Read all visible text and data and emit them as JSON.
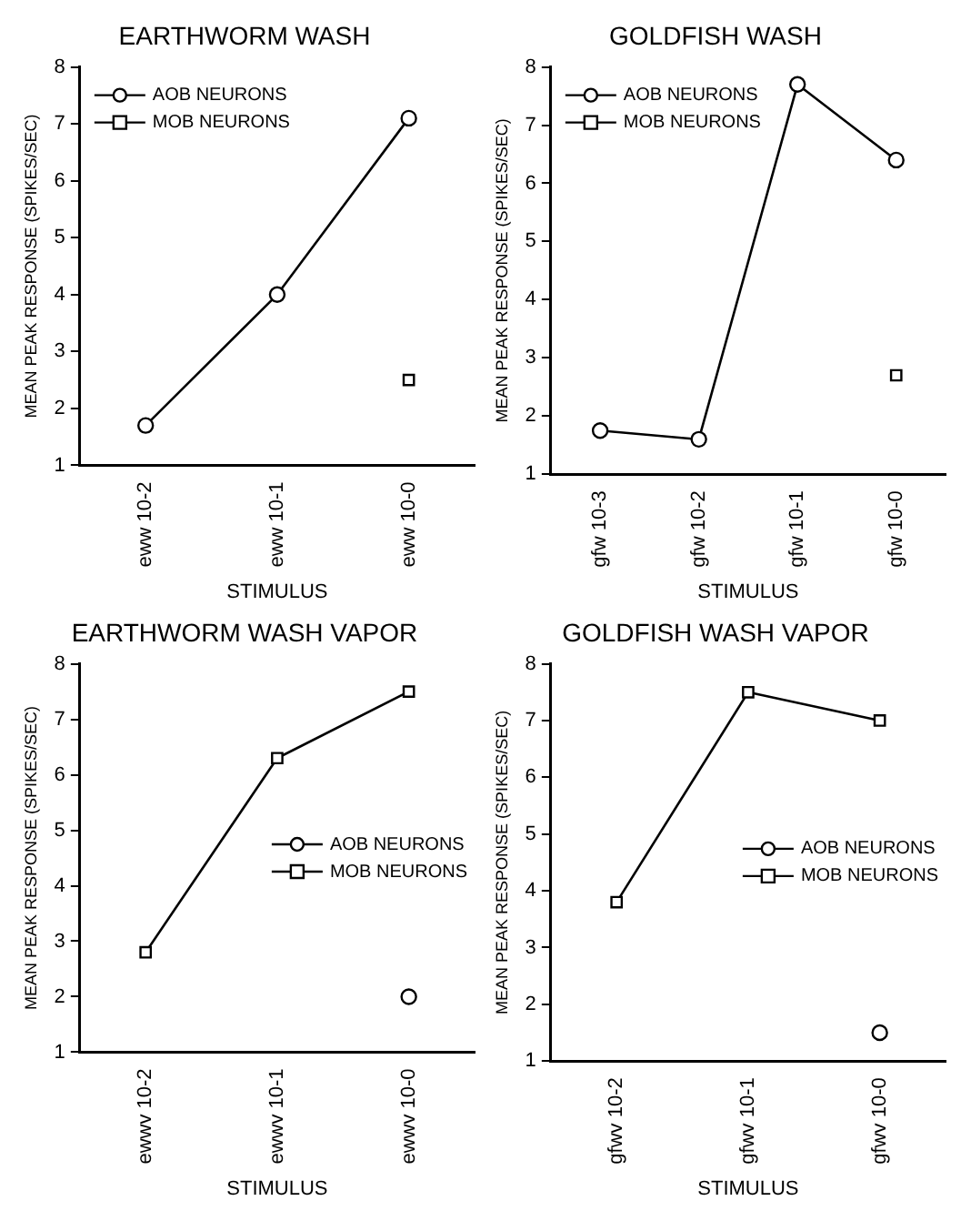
{
  "chart_data": [
    {
      "type": "line",
      "title": "EARTHWORM WASH",
      "xlabel": "STIMULUS",
      "ylabel": "MEAN PEAK RESPONSE (SPIKES/SEC)",
      "categories": [
        "eww 10-2",
        "eww 10-1",
        "eww 10-0"
      ],
      "ylim": [
        1,
        8
      ],
      "yticks": [
        1,
        2,
        3,
        4,
        5,
        6,
        7,
        8
      ],
      "grid": false,
      "legend": "top left",
      "line_style": "solid",
      "series": [
        {
          "name": "AOB NEURONS",
          "color": "#000000",
          "marker": "circle",
          "values": [
            1.7,
            4.0,
            7.1
          ]
        },
        {
          "name": "MOB NEURONS",
          "color": "#000000",
          "marker": "square",
          "values": [
            null,
            null,
            2.5
          ]
        }
      ]
    },
    {
      "type": "line",
      "title": "GOLDFISH WASH",
      "xlabel": "STIMULUS",
      "ylabel": "MEAN PEAK RESPONSE (SPIKES/SEC)",
      "categories": [
        "gfw 10-3",
        "gfw 10-2",
        "gfw 10-1",
        "gfw 10-0"
      ],
      "ylim": [
        1,
        8
      ],
      "yticks": [
        1,
        2,
        3,
        4,
        5,
        6,
        7,
        8
      ],
      "grid": false,
      "legend": "top left",
      "line_style": "solid",
      "series": [
        {
          "name": "AOB NEURONS",
          "color": "#000000",
          "marker": "circle",
          "values": [
            1.75,
            1.6,
            7.7,
            6.4
          ]
        },
        {
          "name": "MOB NEURONS",
          "color": "#000000",
          "marker": "square",
          "values": [
            null,
            null,
            null,
            2.7
          ]
        }
      ]
    },
    {
      "type": "line",
      "title": "EARTHWORM WASH VAPOR",
      "xlabel": "STIMULUS",
      "ylabel": "MEAN PEAK RESPONSE (SPIKES/SEC)",
      "categories": [
        "ewwv 10-2",
        "ewwv 10-1",
        "ewwv 10-0"
      ],
      "ylim": [
        1,
        8
      ],
      "yticks": [
        1,
        2,
        3,
        4,
        5,
        6,
        7,
        8
      ],
      "grid": false,
      "legend": "right",
      "line_style": "solid",
      "series": [
        {
          "name": "AOB NEURONS",
          "color": "#000000",
          "marker": "circle",
          "values": [
            null,
            null,
            2.0
          ]
        },
        {
          "name": "MOB NEURONS",
          "color": "#000000",
          "marker": "square",
          "values": [
            2.8,
            6.3,
            7.5
          ]
        }
      ]
    },
    {
      "type": "line",
      "title": "GOLDFISH WASH VAPOR",
      "xlabel": "STIMULUS",
      "ylabel": "MEAN PEAK RESPONSE (SPIKES/SEC)",
      "categories": [
        "gfwv 10-2",
        "gfwv 10-1",
        "gfwv 10-0"
      ],
      "ylim": [
        1,
        8
      ],
      "yticks": [
        1,
        2,
        3,
        4,
        5,
        6,
        7,
        8
      ],
      "grid": false,
      "legend": "right",
      "line_style": "solid",
      "series": [
        {
          "name": "AOB NEURONS",
          "color": "#000000",
          "marker": "circle",
          "values": [
            null,
            null,
            1.5
          ]
        },
        {
          "name": "MOB NEURONS",
          "color": "#000000",
          "marker": "square",
          "values": [
            3.8,
            7.5,
            7.0
          ]
        }
      ]
    }
  ]
}
